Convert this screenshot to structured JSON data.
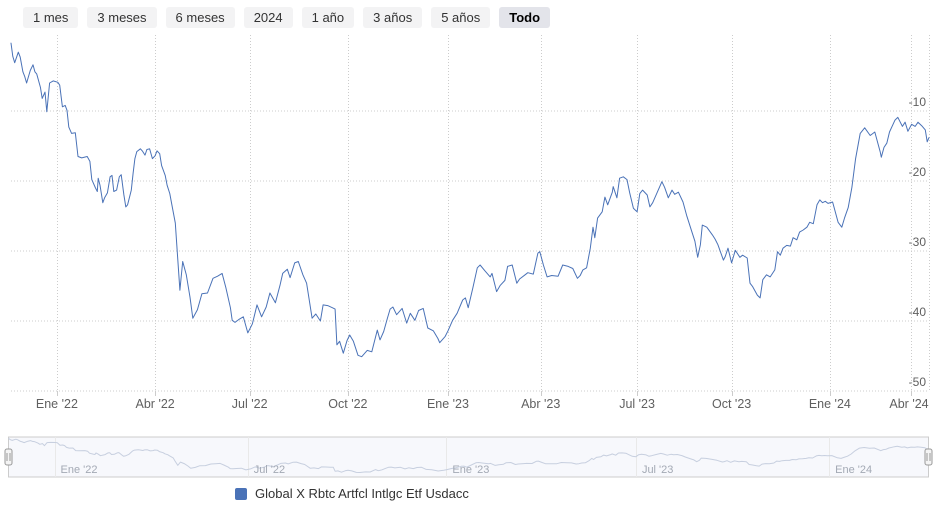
{
  "range_selector": {
    "buttons": [
      {
        "label": "1 mes",
        "selected": false
      },
      {
        "label": "3 meses",
        "selected": false
      },
      {
        "label": "6 meses",
        "selected": false
      },
      {
        "label": "2024",
        "selected": false
      },
      {
        "label": "1 año",
        "selected": false
      },
      {
        "label": "3 años",
        "selected": false
      },
      {
        "label": "5 años",
        "selected": false
      },
      {
        "label": "Todo",
        "selected": true
      }
    ]
  },
  "legend": {
    "series_name": "Global X Rbtc Artfcl Intlgc Etf Usdacc"
  },
  "colors": {
    "line": "#4a72b7",
    "grid": "#cccccc",
    "axis_label": "#606060",
    "nav_line": "#c7cfdf",
    "nav_label": "#a3a9b4",
    "nav_border": "#cccccc",
    "nav_mask": "rgba(91,125,190,0.05)",
    "handle_fill": "#f4f4f4",
    "handle_stroke": "#999999",
    "legend_marker": "#4a72b7"
  },
  "chart_data": {
    "type": "line",
    "unit": "%",
    "grid": "dotted",
    "legend_position": "bottom",
    "y_axis": {
      "side": "right",
      "min": -50,
      "max": 0.9,
      "ticks": [
        -10,
        -20,
        -30,
        -40,
        -50
      ]
    },
    "x_axis": {
      "ticks": [
        {
          "label": "Ene '22",
          "pos": 0.05
        },
        {
          "label": "Abr '22",
          "pos": 0.157
        },
        {
          "label": "Jul '22",
          "pos": 0.26
        },
        {
          "label": "Oct '22",
          "pos": 0.367
        },
        {
          "label": "Ene '23",
          "pos": 0.476
        },
        {
          "label": "Abr '23",
          "pos": 0.577
        },
        {
          "label": "Jul '23",
          "pos": 0.682
        },
        {
          "label": "Oct '23",
          "pos": 0.785
        },
        {
          "label": "Ene '24",
          "pos": 0.892
        },
        {
          "label": "Abr '24",
          "pos": 0.98
        }
      ],
      "right_edge_gridline": true
    },
    "navigator": {
      "ticks": [
        {
          "label": "Ene '22",
          "pos": 0.05
        },
        {
          "label": "Jul '22",
          "pos": 0.26
        },
        {
          "label": "Ene '23",
          "pos": 0.476
        },
        {
          "label": "Jul '23",
          "pos": 0.682
        },
        {
          "label": "Ene '24",
          "pos": 0.892
        }
      ],
      "selected_range": [
        0,
        1
      ]
    },
    "series": [
      {
        "name": "Global X Rbtc Artfcl Intlgc Etf Usdacc",
        "color": "#4a72b7",
        "points": [
          [
            0.0,
            -0.3
          ],
          [
            0.002,
            -2.2
          ],
          [
            0.004,
            -3.1
          ],
          [
            0.008,
            -1.6
          ],
          [
            0.01,
            -2.3
          ],
          [
            0.013,
            -4.4
          ],
          [
            0.015,
            -5.1
          ],
          [
            0.017,
            -6.0
          ],
          [
            0.021,
            -4.2
          ],
          [
            0.024,
            -3.4
          ],
          [
            0.026,
            -4.4
          ],
          [
            0.028,
            -4.7
          ],
          [
            0.032,
            -6.6
          ],
          [
            0.034,
            -8.2
          ],
          [
            0.037,
            -7.3
          ],
          [
            0.039,
            -10.1
          ],
          [
            0.042,
            -6.0
          ],
          [
            0.046,
            -5.7
          ],
          [
            0.051,
            -5.9
          ],
          [
            0.053,
            -6.3
          ],
          [
            0.056,
            -9.4
          ],
          [
            0.059,
            -9.2
          ],
          [
            0.061,
            -9.9
          ],
          [
            0.063,
            -12.3
          ],
          [
            0.066,
            -13.2
          ],
          [
            0.07,
            -13.1
          ],
          [
            0.073,
            -16.5
          ],
          [
            0.077,
            -16.7
          ],
          [
            0.083,
            -16.5
          ],
          [
            0.086,
            -17.2
          ],
          [
            0.088,
            -19.8
          ],
          [
            0.092,
            -21.0
          ],
          [
            0.094,
            -21.5
          ],
          [
            0.095,
            -19.6
          ],
          [
            0.097,
            -20.6
          ],
          [
            0.1,
            -23.1
          ],
          [
            0.102,
            -22.4
          ],
          [
            0.105,
            -21.7
          ],
          [
            0.108,
            -19.4
          ],
          [
            0.11,
            -19.2
          ],
          [
            0.112,
            -21.5
          ],
          [
            0.115,
            -21.3
          ],
          [
            0.118,
            -19.4
          ],
          [
            0.12,
            -19.1
          ],
          [
            0.123,
            -22.0
          ],
          [
            0.125,
            -23.7
          ],
          [
            0.127,
            -23.4
          ],
          [
            0.131,
            -21.3
          ],
          [
            0.133,
            -18.9
          ],
          [
            0.135,
            -16.8
          ],
          [
            0.137,
            -15.8
          ],
          [
            0.141,
            -15.4
          ],
          [
            0.143,
            -15.7
          ],
          [
            0.146,
            -16.3
          ],
          [
            0.148,
            -15.5
          ],
          [
            0.151,
            -15.4
          ],
          [
            0.154,
            -16.8
          ],
          [
            0.157,
            -16.4
          ],
          [
            0.159,
            -15.7
          ],
          [
            0.162,
            -16.1
          ],
          [
            0.164,
            -17.8
          ],
          [
            0.168,
            -19.2
          ],
          [
            0.17,
            -20.6
          ],
          [
            0.173,
            -21.8
          ],
          [
            0.175,
            -23.2
          ],
          [
            0.179,
            -26.0
          ],
          [
            0.181,
            -30.0
          ],
          [
            0.184,
            -35.6
          ],
          [
            0.187,
            -31.5
          ],
          [
            0.191,
            -33.4
          ],
          [
            0.195,
            -36.6
          ],
          [
            0.198,
            -39.6
          ],
          [
            0.203,
            -38.4
          ],
          [
            0.208,
            -36.1
          ],
          [
            0.214,
            -36.0
          ],
          [
            0.22,
            -33.9
          ],
          [
            0.225,
            -33.6
          ],
          [
            0.23,
            -33.2
          ],
          [
            0.234,
            -35.2
          ],
          [
            0.239,
            -38.1
          ],
          [
            0.241,
            -39.9
          ],
          [
            0.244,
            -40.2
          ],
          [
            0.248,
            -39.8
          ],
          [
            0.253,
            -39.4
          ],
          [
            0.258,
            -41.7
          ],
          [
            0.263,
            -40.4
          ],
          [
            0.268,
            -37.7
          ],
          [
            0.273,
            -39.4
          ],
          [
            0.278,
            -38.0
          ],
          [
            0.282,
            -36.0
          ],
          [
            0.288,
            -37.4
          ],
          [
            0.293,
            -34.9
          ],
          [
            0.296,
            -33.2
          ],
          [
            0.301,
            -32.6
          ],
          [
            0.304,
            -33.8
          ],
          [
            0.309,
            -31.7
          ],
          [
            0.313,
            -31.5
          ],
          [
            0.318,
            -33.4
          ],
          [
            0.322,
            -34.6
          ],
          [
            0.328,
            -39.6
          ],
          [
            0.332,
            -39.0
          ],
          [
            0.337,
            -40.0
          ],
          [
            0.34,
            -37.7
          ],
          [
            0.345,
            -37.8
          ],
          [
            0.35,
            -38.1
          ],
          [
            0.353,
            -38.3
          ],
          [
            0.355,
            -43.4
          ],
          [
            0.358,
            -42.9
          ],
          [
            0.362,
            -44.6
          ],
          [
            0.366,
            -42.8
          ],
          [
            0.369,
            -42.0
          ],
          [
            0.373,
            -42.9
          ],
          [
            0.378,
            -44.9
          ],
          [
            0.382,
            -45.1
          ],
          [
            0.388,
            -44.2
          ],
          [
            0.393,
            -44.4
          ],
          [
            0.399,
            -41.3
          ],
          [
            0.402,
            -42.7
          ],
          [
            0.406,
            -41.5
          ],
          [
            0.41,
            -39.6
          ],
          [
            0.413,
            -38.3
          ],
          [
            0.416,
            -38.0
          ],
          [
            0.42,
            -39.1
          ],
          [
            0.426,
            -38.2
          ],
          [
            0.431,
            -40.3
          ],
          [
            0.435,
            -38.9
          ],
          [
            0.44,
            -39.9
          ],
          [
            0.444,
            -38.5
          ],
          [
            0.449,
            -38.2
          ],
          [
            0.454,
            -41.0
          ],
          [
            0.46,
            -41.4
          ],
          [
            0.465,
            -42.5
          ],
          [
            0.467,
            -43.1
          ],
          [
            0.473,
            -42.2
          ],
          [
            0.476,
            -41.4
          ],
          [
            0.481,
            -39.9
          ],
          [
            0.486,
            -38.9
          ],
          [
            0.492,
            -37.0
          ],
          [
            0.495,
            -36.7
          ],
          [
            0.498,
            -38.1
          ],
          [
            0.503,
            -35.3
          ],
          [
            0.508,
            -32.4
          ],
          [
            0.511,
            -32.0
          ],
          [
            0.516,
            -32.8
          ],
          [
            0.522,
            -33.7
          ],
          [
            0.524,
            -33.2
          ],
          [
            0.529,
            -35.8
          ],
          [
            0.533,
            -34.9
          ],
          [
            0.538,
            -34.2
          ],
          [
            0.541,
            -32.2
          ],
          [
            0.546,
            -32.0
          ],
          [
            0.551,
            -34.6
          ],
          [
            0.554,
            -34.0
          ],
          [
            0.56,
            -33.4
          ],
          [
            0.563,
            -33.1
          ],
          [
            0.569,
            -33.3
          ],
          [
            0.574,
            -30.3
          ],
          [
            0.576,
            -30.1
          ],
          [
            0.58,
            -32.0
          ],
          [
            0.584,
            -33.7
          ],
          [
            0.589,
            -33.5
          ],
          [
            0.596,
            -33.6
          ],
          [
            0.601,
            -32.0
          ],
          [
            0.607,
            -32.2
          ],
          [
            0.612,
            -32.5
          ],
          [
            0.617,
            -33.9
          ],
          [
            0.62,
            -33.5
          ],
          [
            0.623,
            -32.7
          ],
          [
            0.627,
            -32.4
          ],
          [
            0.631,
            -29.6
          ],
          [
            0.634,
            -26.6
          ],
          [
            0.636,
            -28.1
          ],
          [
            0.639,
            -25.3
          ],
          [
            0.644,
            -24.4
          ],
          [
            0.647,
            -22.3
          ],
          [
            0.65,
            -23.4
          ],
          [
            0.655,
            -21.6
          ],
          [
            0.656,
            -20.8
          ],
          [
            0.66,
            -22.4
          ],
          [
            0.663,
            -19.6
          ],
          [
            0.667,
            -19.4
          ],
          [
            0.671,
            -19.8
          ],
          [
            0.674,
            -21.7
          ],
          [
            0.678,
            -23.9
          ],
          [
            0.682,
            -24.4
          ],
          [
            0.685,
            -21.8
          ],
          [
            0.688,
            -21.3
          ],
          [
            0.693,
            -22.0
          ],
          [
            0.696,
            -23.7
          ],
          [
            0.699,
            -23.1
          ],
          [
            0.704,
            -21.6
          ],
          [
            0.709,
            -20.1
          ],
          [
            0.712,
            -20.9
          ],
          [
            0.716,
            -22.4
          ],
          [
            0.72,
            -21.3
          ],
          [
            0.723,
            -21.9
          ],
          [
            0.727,
            -21.6
          ],
          [
            0.732,
            -23.0
          ],
          [
            0.736,
            -24.9
          ],
          [
            0.742,
            -27.4
          ],
          [
            0.745,
            -28.6
          ],
          [
            0.748,
            -30.9
          ],
          [
            0.751,
            -29.1
          ],
          [
            0.753,
            -26.3
          ],
          [
            0.758,
            -26.6
          ],
          [
            0.764,
            -27.7
          ],
          [
            0.767,
            -28.3
          ],
          [
            0.77,
            -29.1
          ],
          [
            0.776,
            -31.3
          ],
          [
            0.778,
            -30.8
          ],
          [
            0.781,
            -29.6
          ],
          [
            0.785,
            -31.7
          ],
          [
            0.789,
            -29.9
          ],
          [
            0.794,
            -30.9
          ],
          [
            0.797,
            -30.6
          ],
          [
            0.802,
            -31.0
          ],
          [
            0.805,
            -34.6
          ],
          [
            0.808,
            -35.1
          ],
          [
            0.813,
            -36.3
          ],
          [
            0.816,
            -36.7
          ],
          [
            0.819,
            -34.1
          ],
          [
            0.823,
            -33.4
          ],
          [
            0.827,
            -33.7
          ],
          [
            0.832,
            -32.7
          ],
          [
            0.835,
            -30.1
          ],
          [
            0.838,
            -30.6
          ],
          [
            0.841,
            -29.6
          ],
          [
            0.845,
            -29.2
          ],
          [
            0.849,
            -29.3
          ],
          [
            0.852,
            -28.1
          ],
          [
            0.856,
            -28.4
          ],
          [
            0.859,
            -27.3
          ],
          [
            0.863,
            -27.0
          ],
          [
            0.867,
            -26.6
          ],
          [
            0.87,
            -25.9
          ],
          [
            0.874,
            -26.1
          ],
          [
            0.878,
            -23.4
          ],
          [
            0.881,
            -22.7
          ],
          [
            0.884,
            -23.1
          ],
          [
            0.887,
            -22.9
          ],
          [
            0.89,
            -23.2
          ],
          [
            0.895,
            -23.0
          ],
          [
            0.901,
            -25.9
          ],
          [
            0.905,
            -26.6
          ],
          [
            0.908,
            -25.3
          ],
          [
            0.912,
            -23.8
          ],
          [
            0.916,
            -20.9
          ],
          [
            0.92,
            -16.8
          ],
          [
            0.925,
            -13.2
          ],
          [
            0.93,
            -12.4
          ],
          [
            0.936,
            -13.5
          ],
          [
            0.941,
            -13.0
          ],
          [
            0.947,
            -15.9
          ],
          [
            0.948,
            -16.6
          ],
          [
            0.951,
            -15.2
          ],
          [
            0.954,
            -14.6
          ],
          [
            0.957,
            -13.0
          ],
          [
            0.963,
            -11.3
          ],
          [
            0.966,
            -10.9
          ],
          [
            0.971,
            -12.2
          ],
          [
            0.974,
            -11.6
          ],
          [
            0.977,
            -12.9
          ],
          [
            0.981,
            -11.9
          ],
          [
            0.985,
            -12.2
          ],
          [
            0.988,
            -11.6
          ],
          [
            0.992,
            -12.1
          ],
          [
            0.996,
            -12.7
          ],
          [
            0.998,
            -14.4
          ],
          [
            1.0,
            -13.8
          ]
        ]
      }
    ]
  }
}
